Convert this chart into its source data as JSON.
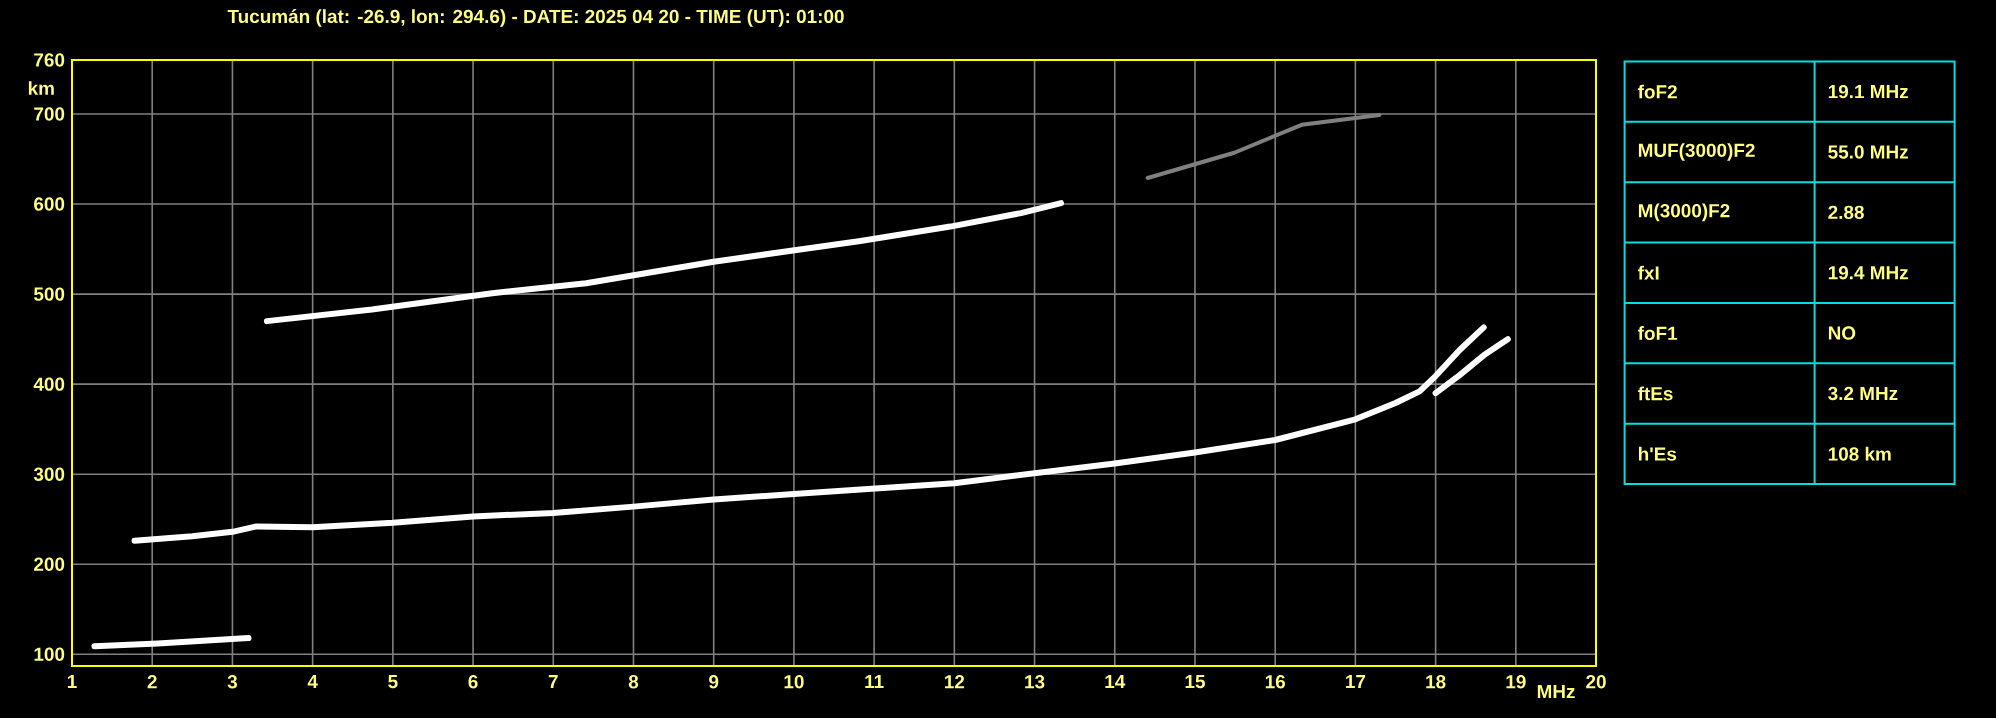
{
  "chart_data": {
    "type": "line",
    "title": "Tucumán (lat: -26.9, lon: 294.6) - DATE: 2025 04 20 - TIME (UT): 01:00",
    "xlabel": "MHz",
    "ylabel": "km",
    "xlim": [
      1,
      20
    ],
    "ylim": [
      87,
      760
    ],
    "xticks": [
      1,
      2,
      3,
      4,
      5,
      6,
      7,
      8,
      9,
      10,
      11,
      12,
      13,
      14,
      15,
      16,
      17,
      18,
      19,
      20
    ],
    "yticks": [
      100,
      200,
      300,
      400,
      500,
      600,
      700,
      760
    ],
    "grid": true,
    "marker": "none",
    "line_style": "solid",
    "series": [
      {
        "color": "#ffffff",
        "x": [
          1.28,
          2.07,
          3.2
        ],
        "values": [
          109,
          112,
          118
        ]
      },
      {
        "color": "#ffffff",
        "x": [
          1.78,
          2.5,
          3.0,
          3.3,
          4,
          5,
          6,
          7,
          8,
          9,
          10,
          10.83,
          12,
          13,
          14,
          15,
          16,
          17,
          17.5,
          17.8,
          18.0,
          18.3,
          18.6
        ],
        "values": [
          226,
          231,
          236,
          242,
          241,
          246,
          253,
          257,
          264,
          272,
          278,
          283,
          290,
          301,
          312,
          324,
          338,
          361,
          379,
          392,
          409,
          438,
          463
        ]
      },
      {
        "color": "#ffffff",
        "x": [
          18.0,
          18.3,
          18.6,
          18.8,
          18.9
        ],
        "values": [
          390,
          410,
          432,
          444,
          450
        ]
      },
      {
        "color": "#ffffff",
        "x": [
          3.43,
          4.74,
          6.24,
          7.41,
          9,
          10.83,
          11.95,
          12.83,
          13.33
        ],
        "values": [
          470,
          483,
          501,
          512,
          536,
          559,
          575,
          590,
          601
        ]
      },
      {
        "color": "#808080",
        "x": [
          14.41,
          15.49,
          16.33,
          17.3
        ],
        "values": [
          629,
          657,
          688,
          699
        ]
      }
    ],
    "annotations": [
      "foF2",
      "19.1 MHz",
      "MUF(3000)F2",
      "55.0 MHz",
      "M(3000)F2",
      "2.88",
      "fxI",
      "19.4 MHz",
      "foF1",
      "NO",
      "ftEs",
      "3.2 MHz",
      "h'Es",
      "108 km"
    ]
  }
}
